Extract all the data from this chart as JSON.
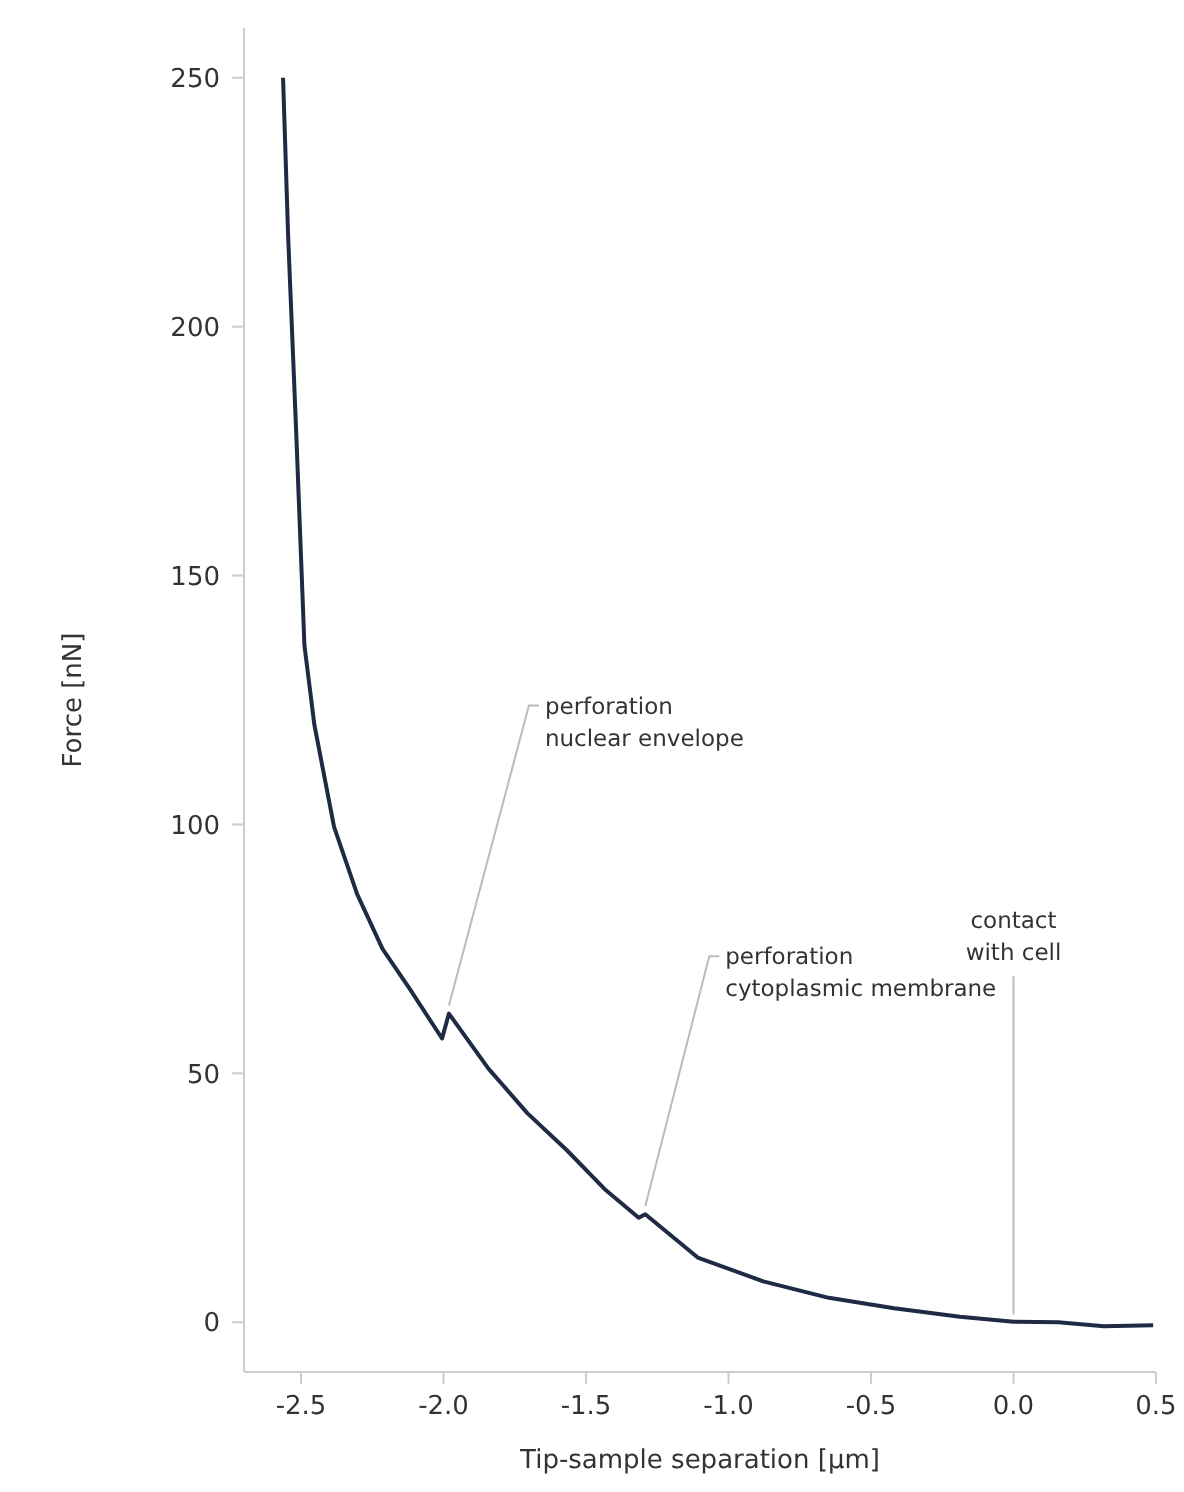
{
  "chart_data": {
    "type": "line",
    "xlabel": "Tip-sample separation [µm]",
    "ylabel": "Force [nN]",
    "x": [
      -2.563,
      -2.545,
      -2.517,
      -2.488,
      -2.453,
      -2.384,
      -2.303,
      -2.214,
      -2.119,
      -2.005,
      -1.981,
      -1.843,
      -1.706,
      -1.568,
      -1.43,
      -1.315,
      -1.292,
      -1.108,
      -0.878,
      -0.648,
      -0.419,
      -0.188,
      0,
      0.157,
      0.317,
      0.49
    ],
    "series": [
      {
        "color": "#1f2a44",
        "values": [
          250,
          218,
          179,
          136,
          120,
          99.5,
          86,
          75,
          67,
          57,
          62,
          51,
          42,
          34.6,
          26.5,
          21,
          21.7,
          13,
          8.2,
          4.9,
          2.8,
          1.1,
          0.1,
          0,
          -0.8,
          -0.6
        ]
      }
    ],
    "xlim": [
      -2.7,
      0.5
    ],
    "xticks": [
      {
        "value": -2.5,
        "label": "-2.5"
      },
      {
        "value": -2,
        "label": "-2.0"
      },
      {
        "value": -1.5,
        "label": "-1.5"
      },
      {
        "value": -1,
        "label": "-1.0"
      },
      {
        "value": -0.5,
        "label": "-0.5"
      },
      {
        "value": 0,
        "label": "0.0"
      },
      {
        "value": 0.5,
        "label": "0.5"
      }
    ],
    "ylim": [
      -10,
      260
    ],
    "yticks": [
      0,
      50,
      100,
      150,
      200,
      250
    ],
    "grid": false,
    "legend": false,
    "marker": "none",
    "line_style": "solid",
    "annotations": [
      {
        "text": "perforation\nnuclear envelope",
        "x": -1.981,
        "y": 62
      },
      {
        "text": "perforation\ncytoplasmic membrane",
        "x": -1.292,
        "y": 21.7
      },
      {
        "text": "contact\nwith cell",
        "x": 0,
        "y": 0
      }
    ]
  }
}
